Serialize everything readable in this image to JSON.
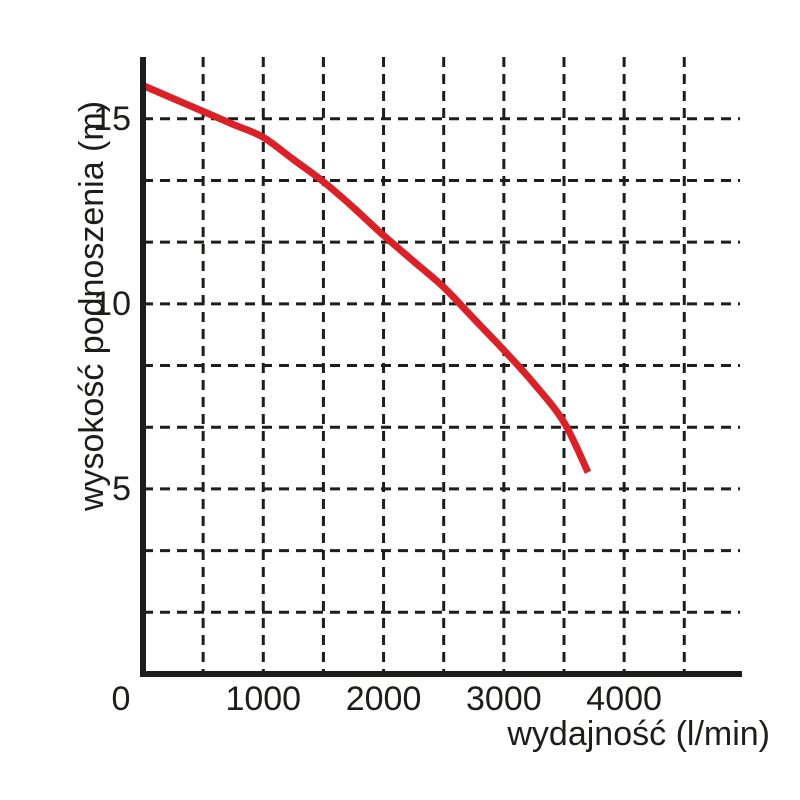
{
  "chart_data": {
    "type": "line",
    "title": "",
    "xlabel": "wydajność (l/min)",
    "ylabel": "wysokość podnoszenia (m)",
    "xlim": [
      0,
      4980
    ],
    "ylim": [
      0,
      16.67
    ],
    "x_gridline_step": 500,
    "y_gridline_step": 1.6667,
    "grid_style": "dashed",
    "legend": "none",
    "x_ticks": [
      {
        "value": 0,
        "label": "0"
      },
      {
        "value": 1000,
        "label": "1000"
      },
      {
        "value": 2000,
        "label": "2000"
      },
      {
        "value": 3000,
        "label": "3000"
      },
      {
        "value": 4000,
        "label": "4000"
      }
    ],
    "y_ticks": [
      {
        "value": 5,
        "label": "5"
      },
      {
        "value": 10,
        "label": "10"
      },
      {
        "value": 15,
        "label": "15"
      }
    ],
    "series": [
      {
        "name": "pump-performance-curve",
        "color": "#da2128",
        "x": [
          0,
          250,
          500,
          750,
          1000,
          1250,
          1500,
          1750,
          2000,
          2250,
          2500,
          2750,
          3000,
          3250,
          3500,
          3700
        ],
        "y": [
          15.9,
          15.55,
          15.2,
          14.85,
          14.5,
          13.9,
          13.3,
          12.6,
          11.85,
          11.15,
          10.45,
          9.6,
          8.75,
          7.85,
          6.8,
          5.45
        ]
      }
    ],
    "colors": {
      "axis": "#1d1d1b",
      "grid": "#1d1d1b",
      "curve": "#da2128",
      "background": "#ffffff"
    }
  }
}
